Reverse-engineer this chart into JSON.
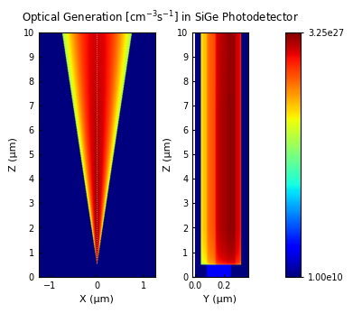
{
  "title": "Optical Generation [cm$^{-3}$s$^{-1}$] in SiGe Photodetector",
  "title_fontsize": 8.5,
  "cmap": "jet",
  "vmin": 10000000000.0,
  "vmax": 3.25e+27,
  "colorbar_ticklabels": [
    "1.00e10",
    "3.25e27"
  ],
  "panel1": {
    "xlabel": "X (μm)",
    "ylabel": "Z (μm)",
    "xlim": [
      -1.25,
      1.25
    ],
    "ylim": [
      0,
      10
    ],
    "xticks": [
      -1,
      0,
      1
    ],
    "yticks": [
      0,
      1,
      2,
      3,
      4,
      5,
      6,
      7,
      8,
      9,
      10
    ]
  },
  "panel2": {
    "xlabel": "Y (μm)",
    "ylabel": "Z (μm)",
    "xlim": [
      -0.02,
      0.37
    ],
    "ylim": [
      0,
      10
    ],
    "xticks": [
      0.0,
      0.2
    ],
    "yticks": [
      0,
      1,
      2,
      3,
      4,
      5,
      6,
      7,
      8,
      9,
      10
    ]
  },
  "background_color": "#ffffff",
  "axis_linewidth": 0.8,
  "tick_fontsize": 7,
  "label_fontsize": 8
}
